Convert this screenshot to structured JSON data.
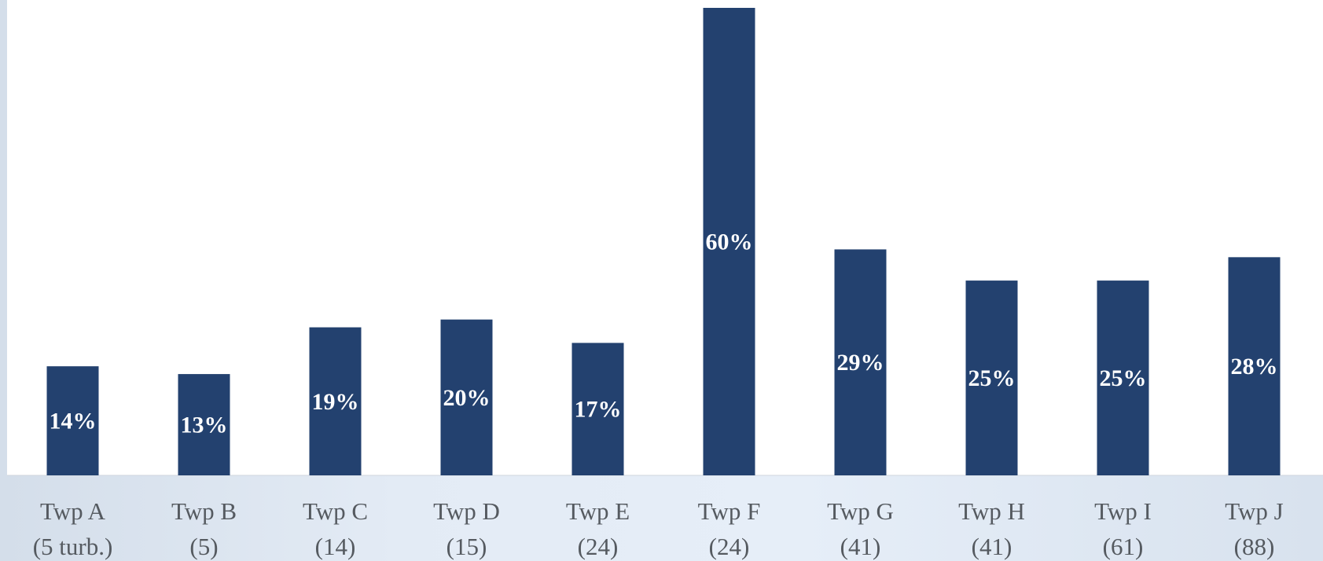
{
  "chart_data": {
    "type": "bar",
    "title": "",
    "xlabel": "",
    "ylabel": "",
    "categories": [
      {
        "name": "Twp A",
        "count": "(5 turb.)"
      },
      {
        "name": "Twp B",
        "count": "(5)"
      },
      {
        "name": "Twp C",
        "count": "(14)"
      },
      {
        "name": "Twp D",
        "count": "(15)"
      },
      {
        "name": "Twp E",
        "count": "(24)"
      },
      {
        "name": "Twp F",
        "count": "(24)"
      },
      {
        "name": "Twp G",
        "count": "(41)"
      },
      {
        "name": "Twp H",
        "count": "(41)"
      },
      {
        "name": "Twp I",
        "count": "(61)"
      },
      {
        "name": "Twp J",
        "count": "(88)"
      }
    ],
    "values": [
      14,
      13,
      19,
      20,
      17,
      60,
      29,
      25,
      25,
      28
    ],
    "data_labels": [
      "14%",
      "13%",
      "19%",
      "20%",
      "17%",
      "60%",
      "29%",
      "25%",
      "25%",
      "28%"
    ],
    "ylim": [
      0,
      60.8
    ],
    "grid": false,
    "legend": "none",
    "colors": {
      "bar": "#23416f",
      "label": "#ffffff",
      "tick": "#555a60",
      "plot_background": "#ffffff"
    }
  }
}
